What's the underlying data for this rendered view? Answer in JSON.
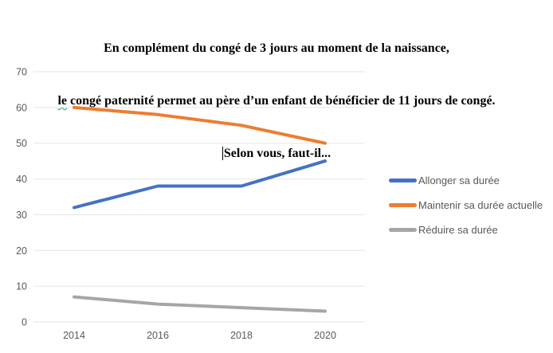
{
  "title": {
    "line1": "En complément du congé de 3 jours au moment de la naissance,",
    "line2_first": "le",
    "line2_rest": " congé paternité permet au père d’un enfant de bénéficier de 11 jours de congé.",
    "line3": "Selon vous, faut-il..."
  },
  "chart_data": {
    "type": "line",
    "x": [
      "2014",
      "2016",
      "2018",
      "2020"
    ],
    "series": [
      {
        "name": "Allonger sa durée",
        "color": "#4472C4",
        "values": [
          32,
          38,
          38,
          45
        ]
      },
      {
        "name": "Maintenir sa durée actuelle",
        "color": "#ED7D31",
        "values": [
          60,
          58,
          55,
          50
        ]
      },
      {
        "name": "Réduire sa durée",
        "color": "#A6A6A6",
        "values": [
          7,
          5,
          4,
          3
        ]
      }
    ],
    "ylim": [
      0,
      70
    ],
    "yticks": [
      0,
      10,
      20,
      30,
      40,
      50,
      60,
      70
    ],
    "grid": "horizontal",
    "legend_position": "right"
  },
  "colors": {
    "gridline": "#E6E6E6",
    "axis_label": "#595959",
    "legend_text": "#595959",
    "grammar_squiggle": "#00A550"
  }
}
